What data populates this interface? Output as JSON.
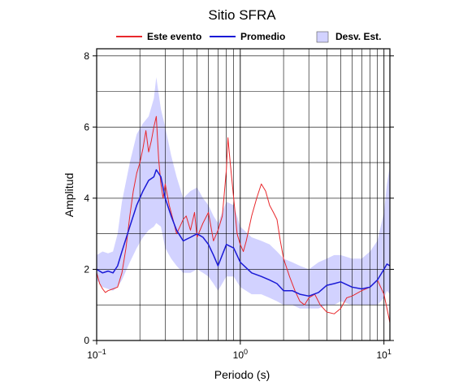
{
  "chart_data": {
    "type": "line",
    "title": "Sitio SFRA",
    "xlabel": "Periodo (s)",
    "ylabel": "Amplitud",
    "xscale": "log",
    "xlim": [
      0.1,
      11
    ],
    "ylim": [
      0,
      8.2
    ],
    "yticks": [
      0,
      2,
      4,
      6,
      8
    ],
    "xticks": [
      {
        "base": "10",
        "exp": "−1"
      },
      {
        "base": "10",
        "exp": "0"
      },
      {
        "base": "10",
        "exp": "1"
      }
    ],
    "grid": true,
    "legend_position": "top",
    "legend": [
      {
        "label": "Este evento",
        "kind": "line",
        "color": "#e8282c"
      },
      {
        "label": "Promedio",
        "kind": "line",
        "color": "#1a1ad6"
      },
      {
        "label": "Desv. Est.",
        "kind": "band",
        "color": "#d2d2ff"
      }
    ],
    "series": [
      {
        "name": "Este evento",
        "color": "#e8282c",
        "x": [
          0.1,
          0.105,
          0.11,
          0.115,
          0.12,
          0.13,
          0.14,
          0.15,
          0.16,
          0.17,
          0.18,
          0.19,
          0.2,
          0.21,
          0.22,
          0.23,
          0.24,
          0.25,
          0.26,
          0.27,
          0.28,
          0.29,
          0.3,
          0.32,
          0.34,
          0.36,
          0.38,
          0.4,
          0.42,
          0.45,
          0.48,
          0.5,
          0.55,
          0.6,
          0.65,
          0.7,
          0.75,
          0.8,
          0.82,
          0.85,
          0.9,
          0.95,
          1.0,
          1.05,
          1.1,
          1.2,
          1.3,
          1.4,
          1.5,
          1.6,
          1.7,
          1.8,
          1.9,
          2.0,
          2.2,
          2.4,
          2.6,
          2.8,
          3.0,
          3.3,
          3.6,
          4.0,
          4.5,
          5.0,
          5.5,
          6.0,
          7.0,
          8.0,
          9.0,
          10.0,
          10.5,
          11.0
        ],
        "y": [
          1.9,
          1.6,
          1.45,
          1.35,
          1.4,
          1.45,
          1.5,
          1.9,
          2.6,
          3.5,
          4.2,
          4.7,
          5.0,
          5.4,
          5.9,
          5.3,
          5.6,
          6.0,
          6.3,
          5.1,
          4.4,
          4.0,
          4.4,
          3.8,
          3.4,
          3.0,
          3.2,
          3.4,
          3.5,
          3.1,
          3.6,
          2.9,
          3.3,
          3.6,
          2.8,
          3.1,
          3.5,
          4.8,
          5.7,
          5.0,
          4.0,
          3.0,
          2.7,
          2.5,
          2.8,
          3.5,
          4.0,
          4.4,
          4.2,
          3.8,
          3.6,
          3.4,
          2.8,
          2.3,
          1.8,
          1.4,
          1.1,
          1.0,
          1.2,
          1.3,
          1.0,
          0.8,
          0.75,
          0.9,
          1.2,
          1.25,
          1.4,
          1.5,
          1.7,
          1.3,
          0.9,
          0.5
        ]
      },
      {
        "name": "Promedio",
        "color": "#1a1ad6",
        "x": [
          0.1,
          0.11,
          0.12,
          0.13,
          0.14,
          0.15,
          0.17,
          0.19,
          0.21,
          0.23,
          0.25,
          0.26,
          0.28,
          0.3,
          0.33,
          0.36,
          0.4,
          0.45,
          0.5,
          0.55,
          0.6,
          0.65,
          0.7,
          0.8,
          0.9,
          1.0,
          1.2,
          1.4,
          1.6,
          1.8,
          2.0,
          2.3,
          2.6,
          3.0,
          3.5,
          4.0,
          4.5,
          5.0,
          6.0,
          7.0,
          8.0,
          9.0,
          10.0,
          10.5,
          11.0
        ],
        "y": [
          2.0,
          1.9,
          1.95,
          1.9,
          2.1,
          2.5,
          3.2,
          3.8,
          4.2,
          4.5,
          4.6,
          4.8,
          4.6,
          4.0,
          3.5,
          3.1,
          2.8,
          2.9,
          3.0,
          2.9,
          2.7,
          2.4,
          2.1,
          2.7,
          2.6,
          2.2,
          1.9,
          1.8,
          1.7,
          1.6,
          1.4,
          1.4,
          1.3,
          1.25,
          1.35,
          1.55,
          1.6,
          1.65,
          1.5,
          1.45,
          1.5,
          1.7,
          2.0,
          2.15,
          2.1
        ]
      }
    ],
    "band": {
      "name": "Desv. Est.",
      "color": "#d2d2ff",
      "x": [
        0.1,
        0.11,
        0.12,
        0.13,
        0.14,
        0.15,
        0.17,
        0.19,
        0.21,
        0.23,
        0.25,
        0.26,
        0.28,
        0.3,
        0.33,
        0.36,
        0.4,
        0.45,
        0.5,
        0.55,
        0.6,
        0.65,
        0.7,
        0.8,
        0.9,
        1.0,
        1.2,
        1.4,
        1.6,
        1.8,
        2.0,
        2.3,
        2.6,
        3.0,
        3.5,
        4.0,
        4.5,
        5.0,
        6.0,
        7.0,
        8.0,
        9.0,
        10.0,
        10.5,
        11.0
      ],
      "upper": [
        2.4,
        2.5,
        2.45,
        2.5,
        3.0,
        3.9,
        5.0,
        5.8,
        6.1,
        6.3,
        6.8,
        7.4,
        6.5,
        6.0,
        5.2,
        4.6,
        4.0,
        4.2,
        4.3,
        4.0,
        3.8,
        3.5,
        3.3,
        3.9,
        3.8,
        3.2,
        2.9,
        2.8,
        2.7,
        2.5,
        2.3,
        2.2,
        2.1,
        2.0,
        2.2,
        2.3,
        2.4,
        2.4,
        2.3,
        2.3,
        2.5,
        2.8,
        3.6,
        4.4,
        4.9
      ],
      "lower": [
        1.7,
        1.5,
        1.45,
        1.4,
        1.5,
        1.7,
        2.2,
        2.6,
        2.9,
        3.1,
        3.2,
        3.3,
        3.2,
        2.6,
        2.3,
        2.1,
        1.9,
        1.9,
        2.0,
        1.9,
        1.8,
        1.6,
        1.4,
        1.8,
        1.8,
        1.5,
        1.3,
        1.3,
        1.2,
        1.1,
        1.0,
        1.0,
        0.9,
        0.9,
        0.9,
        1.0,
        1.0,
        1.1,
        1.0,
        1.0,
        1.0,
        1.0,
        1.2,
        1.4,
        1.3
      ]
    }
  }
}
